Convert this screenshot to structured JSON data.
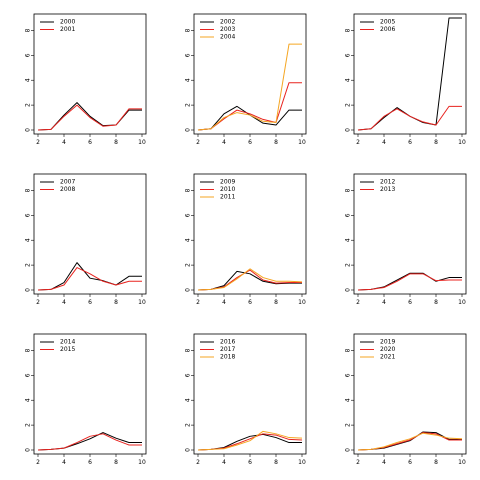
{
  "chart_data": [
    {
      "type": "line",
      "x": [
        2,
        3,
        4,
        5,
        6,
        7,
        8,
        9,
        10
      ],
      "xlim": [
        2,
        10
      ],
      "ylim": [
        0,
        9
      ],
      "xticks": [
        2,
        4,
        6,
        8,
        10
      ],
      "yticks": [
        0,
        2,
        4,
        6,
        8
      ],
      "grid": false,
      "legend_position": "top-left",
      "series": [
        {
          "name": "2000",
          "color": "#000000",
          "values": [
            0,
            0.05,
            1.2,
            2.2,
            1.1,
            0.35,
            0.4,
            1.6,
            1.6
          ]
        },
        {
          "name": "2001",
          "color": "#E8231F",
          "values": [
            0,
            0.05,
            1.1,
            2.0,
            1.0,
            0.3,
            0.4,
            1.7,
            1.7
          ]
        }
      ]
    },
    {
      "type": "line",
      "x": [
        2,
        3,
        4,
        5,
        6,
        7,
        8,
        9,
        10
      ],
      "xlim": [
        2,
        10
      ],
      "ylim": [
        0,
        9
      ],
      "xticks": [
        2,
        4,
        6,
        8,
        10
      ],
      "yticks": [
        0,
        2,
        4,
        6,
        8
      ],
      "grid": false,
      "legend_position": "top-left",
      "series": [
        {
          "name": "2002",
          "color": "#000000",
          "values": [
            0,
            0.1,
            1.3,
            1.9,
            1.2,
            0.55,
            0.4,
            1.6,
            1.6
          ]
        },
        {
          "name": "2003",
          "color": "#E8231F",
          "values": [
            0,
            0.1,
            0.9,
            1.6,
            1.3,
            0.85,
            0.6,
            3.8,
            3.8
          ]
        },
        {
          "name": "2004",
          "color": "#F5A623",
          "values": [
            0,
            0.1,
            1.0,
            1.4,
            1.2,
            0.7,
            0.6,
            6.9,
            6.9
          ]
        }
      ]
    },
    {
      "type": "line",
      "x": [
        2,
        3,
        4,
        5,
        6,
        7,
        8,
        9,
        10
      ],
      "xlim": [
        2,
        10
      ],
      "ylim": [
        0,
        9
      ],
      "xticks": [
        2,
        4,
        6,
        8,
        10
      ],
      "yticks": [
        0,
        2,
        4,
        6,
        8
      ],
      "grid": false,
      "legend_position": "top-left",
      "series": [
        {
          "name": "2005",
          "color": "#000000",
          "values": [
            0,
            0.1,
            1.0,
            1.8,
            1.1,
            0.6,
            0.4,
            9.0,
            9.0
          ]
        },
        {
          "name": "2006",
          "color": "#E8231F",
          "values": [
            0,
            0.1,
            1.1,
            1.7,
            1.1,
            0.65,
            0.4,
            1.9,
            1.9
          ]
        }
      ]
    },
    {
      "type": "line",
      "x": [
        2,
        3,
        4,
        5,
        6,
        7,
        8,
        9,
        10
      ],
      "xlim": [
        2,
        10
      ],
      "ylim": [
        0,
        9
      ],
      "xticks": [
        2,
        4,
        6,
        8,
        10
      ],
      "yticks": [
        0,
        2,
        4,
        6,
        8
      ],
      "grid": false,
      "legend_position": "top-left",
      "series": [
        {
          "name": "2007",
          "color": "#000000",
          "values": [
            0,
            0.05,
            0.6,
            2.2,
            0.95,
            0.75,
            0.4,
            1.1,
            1.1
          ]
        },
        {
          "name": "2008",
          "color": "#E8231F",
          "values": [
            0,
            0.05,
            0.4,
            1.8,
            1.3,
            0.7,
            0.4,
            0.7,
            0.7
          ]
        }
      ]
    },
    {
      "type": "line",
      "x": [
        2,
        3,
        4,
        5,
        6,
        7,
        8,
        9,
        10
      ],
      "xlim": [
        2,
        10
      ],
      "ylim": [
        0,
        9
      ],
      "xticks": [
        2,
        4,
        6,
        8,
        10
      ],
      "yticks": [
        0,
        2,
        4,
        6,
        8
      ],
      "grid": false,
      "legend_position": "top-left",
      "series": [
        {
          "name": "2009",
          "color": "#000000",
          "values": [
            0,
            0.05,
            0.35,
            1.5,
            1.3,
            0.7,
            0.5,
            0.55,
            0.55
          ]
        },
        {
          "name": "2010",
          "color": "#E8231F",
          "values": [
            0,
            0.05,
            0.25,
            1.0,
            1.6,
            0.8,
            0.55,
            0.6,
            0.6
          ]
        },
        {
          "name": "2011",
          "color": "#F5A623",
          "values": [
            0,
            0.05,
            0.2,
            0.9,
            1.7,
            1.0,
            0.7,
            0.7,
            0.65
          ]
        }
      ]
    },
    {
      "type": "line",
      "x": [
        2,
        3,
        4,
        5,
        6,
        7,
        8,
        9,
        10
      ],
      "xlim": [
        2,
        10
      ],
      "ylim": [
        0,
        9
      ],
      "xticks": [
        2,
        4,
        6,
        8,
        10
      ],
      "yticks": [
        0,
        2,
        4,
        6,
        8
      ],
      "grid": false,
      "legend_position": "top-left",
      "series": [
        {
          "name": "2012",
          "color": "#000000",
          "values": [
            0,
            0.05,
            0.25,
            0.8,
            1.35,
            1.35,
            0.7,
            1.0,
            1.0
          ]
        },
        {
          "name": "2013",
          "color": "#E8231F",
          "values": [
            0,
            0.05,
            0.2,
            0.7,
            1.3,
            1.3,
            0.75,
            0.8,
            0.8
          ]
        }
      ]
    },
    {
      "type": "line",
      "x": [
        2,
        3,
        4,
        5,
        6,
        7,
        8,
        9,
        10
      ],
      "xlim": [
        2,
        10
      ],
      "ylim": [
        0,
        9
      ],
      "xticks": [
        2,
        4,
        6,
        8,
        10
      ],
      "yticks": [
        0,
        2,
        4,
        6,
        8
      ],
      "grid": false,
      "legend_position": "top-left",
      "series": [
        {
          "name": "2014",
          "color": "#000000",
          "values": [
            0,
            0.05,
            0.15,
            0.5,
            0.9,
            1.4,
            0.95,
            0.6,
            0.6
          ]
        },
        {
          "name": "2015",
          "color": "#E8231F",
          "values": [
            0,
            0.05,
            0.15,
            0.6,
            1.1,
            1.3,
            0.8,
            0.4,
            0.4
          ]
        }
      ]
    },
    {
      "type": "line",
      "x": [
        2,
        3,
        4,
        5,
        6,
        7,
        8,
        9,
        10
      ],
      "xlim": [
        2,
        10
      ],
      "ylim": [
        0,
        9
      ],
      "xticks": [
        2,
        4,
        6,
        8,
        10
      ],
      "yticks": [
        0,
        2,
        4,
        6,
        8
      ],
      "grid": false,
      "legend_position": "top-left",
      "series": [
        {
          "name": "2016",
          "color": "#000000",
          "values": [
            0,
            0.05,
            0.2,
            0.7,
            1.1,
            1.25,
            1.0,
            0.6,
            0.6
          ]
        },
        {
          "name": "2017",
          "color": "#E8231F",
          "values": [
            0,
            0.05,
            0.15,
            0.5,
            0.9,
            1.3,
            1.2,
            0.85,
            0.8
          ]
        },
        {
          "name": "2018",
          "color": "#F5A623",
          "values": [
            0,
            0.05,
            0.1,
            0.4,
            0.75,
            1.5,
            1.3,
            1.0,
            0.95
          ]
        }
      ]
    },
    {
      "type": "line",
      "x": [
        2,
        3,
        4,
        5,
        6,
        7,
        8,
        9,
        10
      ],
      "xlim": [
        2,
        10
      ],
      "ylim": [
        0,
        9
      ],
      "xticks": [
        2,
        4,
        6,
        8,
        10
      ],
      "yticks": [
        0,
        2,
        4,
        6,
        8
      ],
      "grid": false,
      "legend_position": "top-left",
      "series": [
        {
          "name": "2019",
          "color": "#000000",
          "values": [
            0,
            0.05,
            0.15,
            0.45,
            0.75,
            1.45,
            1.4,
            0.85,
            0.85
          ]
        },
        {
          "name": "2020",
          "color": "#E8231F",
          "values": [
            0,
            0.05,
            0.2,
            0.5,
            0.8,
            1.4,
            1.3,
            0.8,
            0.8
          ]
        },
        {
          "name": "2021",
          "color": "#F5A623",
          "values": [
            0,
            0.05,
            0.25,
            0.6,
            0.9,
            1.35,
            1.2,
            0.95,
            0.9
          ]
        }
      ]
    }
  ]
}
